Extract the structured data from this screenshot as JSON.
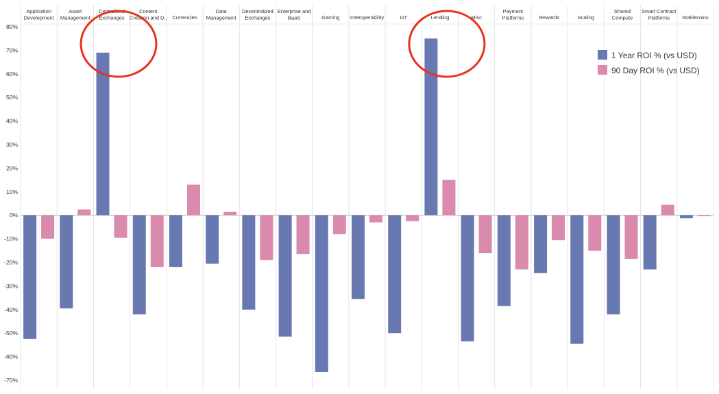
{
  "chart_data": {
    "type": "bar",
    "categories": [
      [
        "Application",
        "Development"
      ],
      [
        "Asset",
        "Management"
      ],
      [
        "Centralized",
        "Exchanges"
      ],
      [
        "Content",
        "Creation and D.."
      ],
      [
        "Currencies"
      ],
      [
        "Data",
        "Management"
      ],
      [
        "Decentralized",
        "Exchanges"
      ],
      [
        "Enterprise and",
        "BaaS"
      ],
      [
        "Gaming"
      ],
      [
        "Interoperability"
      ],
      [
        "IoT"
      ],
      [
        "Lending"
      ],
      [
        "Misc"
      ],
      [
        "Payment",
        "Platforms"
      ],
      [
        "Rewards"
      ],
      [
        "Scaling"
      ],
      [
        "Shared",
        "Compute"
      ],
      [
        "Smart Contract",
        "Platforms"
      ],
      [
        "Stablecoins"
      ]
    ],
    "series": [
      {
        "name": "1 Year ROI % (vs USD)",
        "color": "#6878b0",
        "values": [
          -52.5,
          -39.5,
          69.0,
          -42.0,
          -22.0,
          -20.5,
          -40.0,
          -51.5,
          -66.5,
          -35.5,
          -50.0,
          75.0,
          -53.5,
          -38.5,
          -24.5,
          -54.5,
          -42.0,
          -23.0,
          -1.2
        ]
      },
      {
        "name": "90 Day ROI % (vs USD)",
        "color": "#d98aad",
        "values": [
          -10.0,
          2.5,
          -9.5,
          -22.0,
          13.0,
          1.5,
          -19.0,
          -16.5,
          -8.0,
          -3.0,
          -2.5,
          15.0,
          -16.0,
          -23.0,
          -10.5,
          -15.0,
          -18.5,
          4.5,
          -0.3
        ]
      }
    ],
    "y_ticks": [
      "80%",
      "70%",
      "60%",
      "50%",
      "40%",
      "30%",
      "20%",
      "10%",
      "0%",
      "-10%",
      "-20%",
      "-30%",
      "-40%",
      "-50%",
      "-60%",
      "-70%"
    ],
    "ylim": [
      -72,
      82
    ],
    "unit": "%",
    "legend_position": "top-right",
    "annotations": [
      {
        "type": "circle",
        "category": "Centralized Exchanges",
        "color": "#e8321e"
      },
      {
        "type": "circle",
        "category": "Lending",
        "color": "#e8321e"
      }
    ]
  }
}
